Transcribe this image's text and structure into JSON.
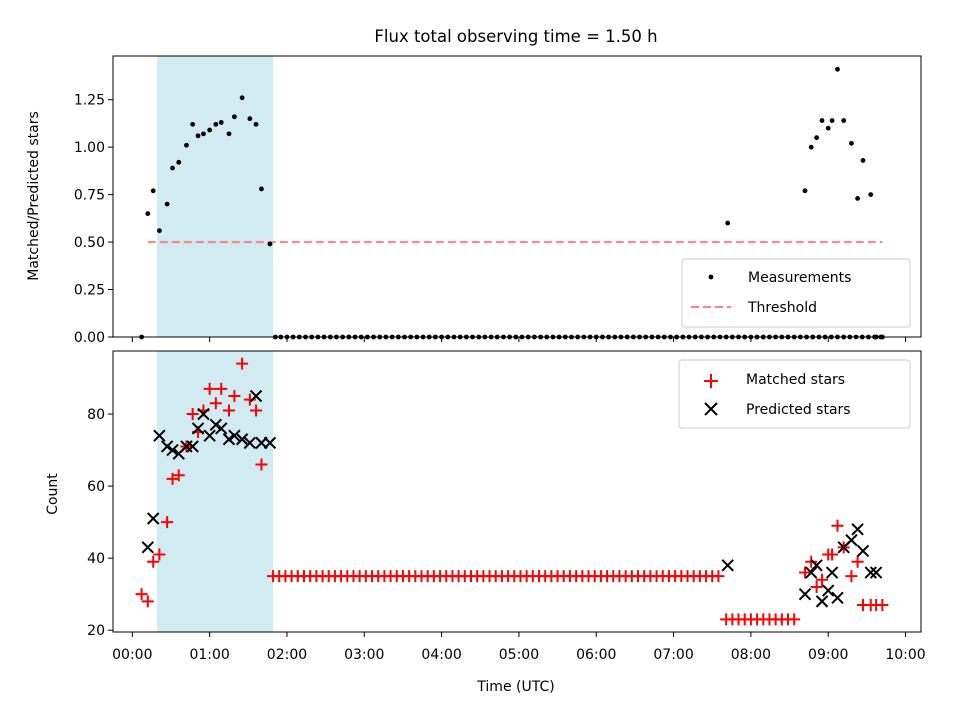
{
  "title": "Flux total observing time = 1.50 h",
  "xlabel": "Time (UTC)",
  "x_tick_labels": [
    "00:00",
    "01:00",
    "02:00",
    "03:00",
    "04:00",
    "05:00",
    "06:00",
    "07:00",
    "08:00",
    "09:00",
    "10:00"
  ],
  "colors": {
    "measurement": "#000000",
    "threshold": "#ff8080",
    "matched": "#ff0000",
    "predicted": "#000000",
    "span": "#add8e6"
  },
  "chart_data": [
    {
      "type": "scatter",
      "ylabel": "Matched/Predicted stars",
      "xlim": [
        -0.25,
        10.2
      ],
      "ylim": [
        0,
        1.48
      ],
      "y_ticks": [
        0,
        0.25,
        0.5,
        0.75,
        1.0,
        1.25
      ],
      "y_tick_labels": [
        "0.00",
        "0.25",
        "0.50",
        "0.75",
        "1.00",
        "1.25"
      ],
      "shaded_span": [
        0.32,
        1.82
      ],
      "legend": {
        "location": "lower right",
        "entries": [
          "Measurements",
          "Threshold"
        ]
      },
      "threshold": {
        "name": "Threshold",
        "value": 0.5,
        "x": [
          0.2,
          9.7
        ]
      },
      "series": [
        {
          "name": "Measurements",
          "x": [
            0.12,
            0.2,
            0.27,
            0.35,
            0.45,
            0.52,
            0.6,
            0.7,
            0.78,
            0.85,
            0.92,
            1.0,
            1.08,
            1.15,
            1.25,
            1.32,
            1.42,
            1.52,
            1.6,
            1.67,
            1.78,
            1.85,
            7.7,
            8.7,
            8.78,
            8.85,
            8.92,
            9.0,
            9.05,
            9.12,
            9.2,
            9.3,
            9.38,
            9.45,
            9.55,
            9.62,
            9.7
          ],
          "y": [
            0,
            0.65,
            0.77,
            0.56,
            0.7,
            0.89,
            0.92,
            1.01,
            1.12,
            1.06,
            1.07,
            1.09,
            1.12,
            1.13,
            1.07,
            1.16,
            1.26,
            1.15,
            1.12,
            0.78,
            0.49,
            0,
            0.6,
            0.77,
            1.0,
            1.05,
            1.14,
            1.1,
            1.14,
            1.41,
            1.14,
            1.02,
            0.73,
            0.93,
            0.75,
            0,
            0
          ],
          "zero_run": {
            "start": 1.92,
            "end": 9.7,
            "step": 0.08
          }
        }
      ]
    },
    {
      "type": "scatter",
      "ylabel": "Count",
      "xlim": [
        -0.25,
        10.2
      ],
      "ylim": [
        19.5,
        97.5
      ],
      "y_ticks": [
        20,
        40,
        60,
        80
      ],
      "y_tick_labels": [
        "20",
        "40",
        "60",
        "80"
      ],
      "shaded_span": [
        0.32,
        1.82
      ],
      "legend": {
        "location": "upper right",
        "entries": [
          "Matched stars",
          "Predicted stars"
        ]
      },
      "series": [
        {
          "name": "Matched stars",
          "x": [
            0.12,
            0.2,
            0.27,
            0.35,
            0.45,
            0.52,
            0.6,
            0.7,
            0.78,
            0.85,
            0.92,
            1.0,
            1.08,
            1.15,
            1.25,
            1.32,
            1.42,
            1.52,
            1.6,
            1.67,
            8.7,
            8.78,
            8.85,
            8.92,
            9.0,
            9.05,
            9.12,
            9.2,
            9.3,
            9.38,
            9.45,
            9.55,
            9.62,
            9.7
          ],
          "y": [
            30,
            28,
            39,
            41,
            50,
            62,
            63,
            71,
            80,
            75,
            81,
            87,
            83,
            87,
            81,
            85,
            94,
            84,
            81,
            66,
            36,
            39,
            32,
            34,
            41,
            41,
            49,
            43,
            35,
            39,
            27,
            27,
            27,
            27
          ],
          "runs": [
            {
              "start": 1.82,
              "end": 7.6,
              "step": 0.08,
              "value": 35
            },
            {
              "start": 7.68,
              "end": 8.6,
              "step": 0.08,
              "value": 23
            }
          ]
        },
        {
          "name": "Predicted stars",
          "x": [
            0.2,
            0.27,
            0.35,
            0.45,
            0.52,
            0.6,
            0.7,
            0.78,
            0.85,
            0.92,
            1.0,
            1.08,
            1.15,
            1.25,
            1.32,
            1.42,
            1.52,
            1.6,
            1.67,
            1.78,
            7.7,
            8.7,
            8.78,
            8.85,
            8.92,
            9.0,
            9.05,
            9.12,
            9.2,
            9.3,
            9.38,
            9.45,
            9.55,
            9.62
          ],
          "y": [
            43,
            51,
            74,
            71,
            70,
            69,
            71,
            71,
            76,
            80,
            74,
            77,
            76,
            73,
            74,
            73,
            72,
            85,
            72,
            72,
            38,
            30,
            36,
            38,
            28,
            31,
            36,
            29,
            43,
            45,
            48,
            42,
            36,
            36
          ]
        }
      ]
    }
  ]
}
